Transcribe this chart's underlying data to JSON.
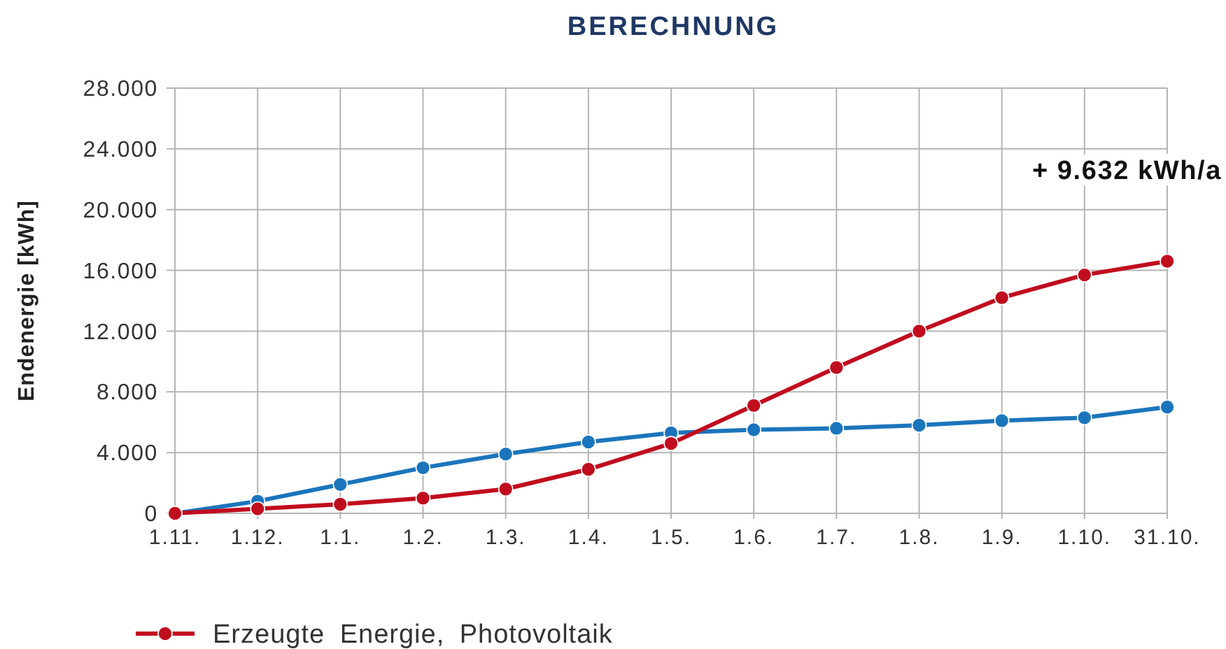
{
  "chart_data": {
    "type": "line",
    "title": "BERECHNUNG",
    "ylabel": "Endenergie [kWh]",
    "categories": [
      "1.11.",
      "1.12.",
      "1.1.",
      "1.2.",
      "1.3.",
      "1.4.",
      "1.5.",
      "1.6.",
      "1.7.",
      "1.8.",
      "1.9.",
      "1.10.",
      "31.10."
    ],
    "series": [
      {
        "color": "#1b75bc",
        "values": [
          0,
          800,
          1900,
          3000,
          3900,
          4700,
          5300,
          5500,
          5600,
          5800,
          6100,
          6300,
          7000
        ]
      },
      {
        "name": "Erzeugte Energie, Photovoltaik",
        "color": "#c00d1e",
        "values": [
          0,
          300,
          600,
          1000,
          1600,
          2900,
          4600,
          7100,
          9600,
          12000,
          14200,
          15700,
          16600
        ]
      }
    ],
    "ylim": [
      0,
      28000
    ],
    "yticks": [
      0,
      {
        "value": 4000,
        "label": "4.000"
      },
      {
        "value": 8000,
        "label": "8.000"
      },
      {
        "value": 12000,
        "label": "12.000"
      },
      {
        "value": 16000,
        "label": "16.000"
      },
      {
        "value": 20000,
        "label": "20.000"
      },
      {
        "value": 24000,
        "label": "24.000"
      },
      {
        "value": 28000,
        "label": "28.000"
      }
    ],
    "grid": true,
    "legend": "bottom left",
    "marker": "circle",
    "line_style": "solid",
    "annotations": [
      "+ 9.632 kWh/a"
    ]
  }
}
